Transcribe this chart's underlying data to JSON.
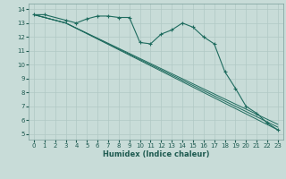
{
  "xlabel": "Humidex (Indice chaleur)",
  "background_color": "#c8dcd8",
  "grid_color": "#b0c8c4",
  "line_color": "#1e6b5e",
  "xlim": [
    -0.5,
    23.5
  ],
  "ylim": [
    4.6,
    14.4
  ],
  "xticks": [
    0,
    1,
    2,
    3,
    4,
    5,
    6,
    7,
    8,
    9,
    10,
    11,
    12,
    13,
    14,
    15,
    16,
    17,
    18,
    19,
    20,
    21,
    22,
    23
  ],
  "yticks": [
    5,
    6,
    7,
    8,
    9,
    10,
    11,
    12,
    13,
    14
  ],
  "main_x": [
    0,
    1,
    3,
    4,
    5,
    6,
    7,
    8,
    9,
    10,
    11,
    12,
    13,
    14,
    15,
    16,
    17,
    18,
    19,
    20,
    21,
    22,
    23
  ],
  "main_y": [
    13.6,
    13.6,
    13.2,
    13.0,
    13.3,
    13.5,
    13.5,
    13.4,
    13.4,
    11.6,
    11.5,
    12.2,
    12.5,
    13.0,
    12.7,
    12.0,
    11.5,
    9.5,
    8.3,
    7.0,
    6.5,
    5.8,
    5.3
  ],
  "fan_lines": [
    {
      "x": [
        0,
        3,
        23
      ],
      "y": [
        13.6,
        13.0,
        5.3
      ]
    },
    {
      "x": [
        0,
        3,
        23
      ],
      "y": [
        13.6,
        13.0,
        5.5
      ]
    },
    {
      "x": [
        0,
        3,
        23
      ],
      "y": [
        13.6,
        13.0,
        5.7
      ]
    }
  ],
  "xlabel_fontsize": 6,
  "tick_fontsize": 5,
  "xlabel_color": "#1e5a50",
  "tick_color": "#1e5a50"
}
